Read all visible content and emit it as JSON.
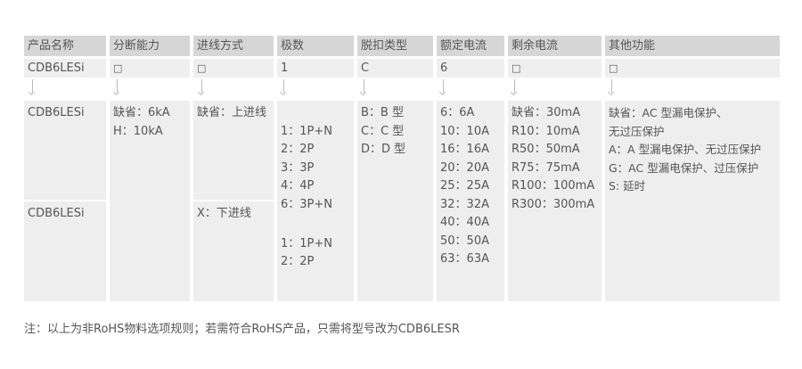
{
  "headers": [
    "产品名称",
    "分断能力",
    "进线方式",
    "极数",
    "脱扣类型",
    "额定电流",
    "剩余电流",
    "其他功能"
  ],
  "code": [
    "CDB6LESi",
    "□",
    "□",
    "1",
    "C",
    "6",
    "□",
    "□"
  ],
  "body": {
    "name_top": "CDB6LESi",
    "name_bottom": "CDB6LESi",
    "breaking": "缺省：6kA\nH：10kA",
    "wiring_top": "缺省：上进线",
    "wiring_bottom": "X：下进线",
    "poles_top": "1：1P+N\n2：2P\n3：3P\n4：4P\n6：3P+N",
    "poles_bottom": "1：1P+N\n2：2P",
    "trip": "B：B 型\nC：C 型\nD：D 型",
    "rated": "6：6A\n10：10A\n16：16A\n20：20A\n25：25A\n32：32A\n40：40A\n50：50A\n63：63A",
    "residual": "缺省：30mA\nR10：10mA\nR50：50mA\nR75：75mA\nR100：100mA\nR300：300mA",
    "other": "缺省：AC 型漏电保护、\n无过压保护\nA：A 型漏电保护、无过压保护\nG：AC 型漏电保护、过压保护\nS: 延时"
  },
  "note": "注：以上为非RoHS物料选项规则；若需符合RoHS产品，只需将型号改为CDB6LESR"
}
